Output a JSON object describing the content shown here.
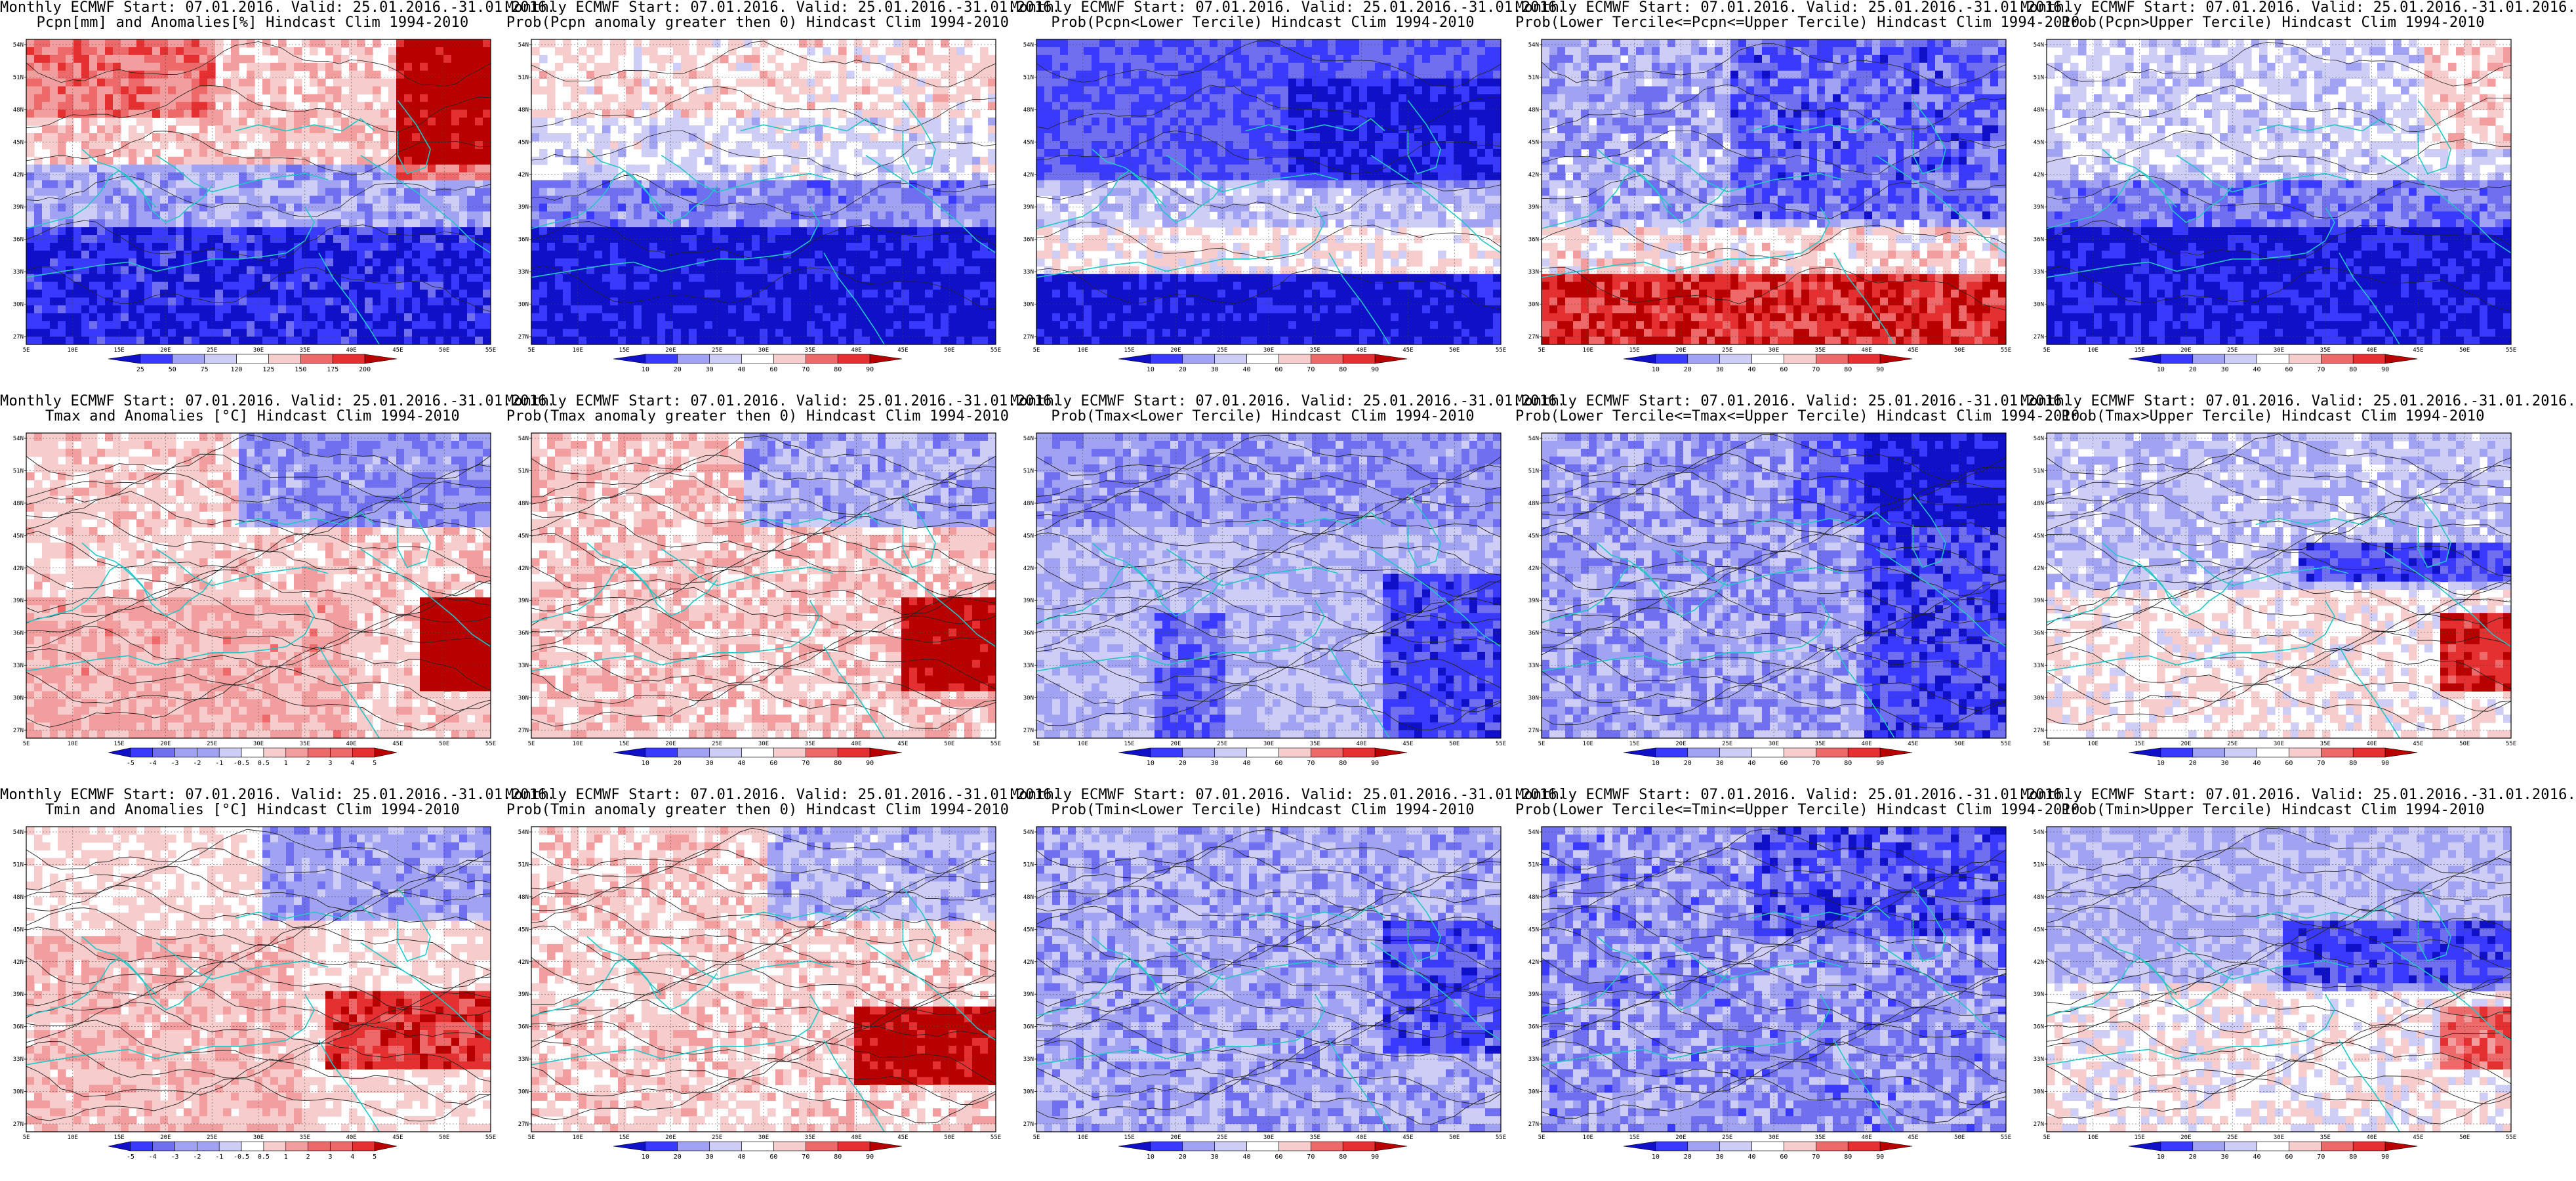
{
  "page": {
    "rows": 3,
    "cols": 5,
    "region": "Mediterranean / Middle East",
    "lat_labels": [
      "54N",
      "51N",
      "48N",
      "45N",
      "42N",
      "39N",
      "36N",
      "33N",
      "30N",
      "27N"
    ],
    "lon_labels": [
      "5E",
      "10E",
      "15E",
      "20E",
      "25E",
      "30E",
      "35E",
      "40E",
      "45E",
      "50E",
      "55E"
    ]
  },
  "colors": {
    "coast": "#22c7c7",
    "contour": "#222222",
    "grid": "#000000",
    "blue_scale": [
      "#1010c8",
      "#3a3aff",
      "#6f6ff0",
      "#a2a2f2",
      "#cdcdf6",
      "#ffffff",
      "#f6cccc",
      "#f29e9e",
      "#ee6a6a",
      "#e43030",
      "#b80000"
    ],
    "red": "#e43030",
    "blue": "#2f2fe0"
  },
  "panels": [
    {
      "id": "pcpn-anom",
      "line1": "Monthly ECMWF Start: 07.01.2016. Valid: 25.01.2016.-31.01.2016.",
      "line2": "Pcpn[mm] and Anomalies[%] Hindcast Clim 1994-2010",
      "cbar": [
        "25",
        "50",
        "75",
        "120",
        "125",
        "150",
        "175",
        "200"
      ],
      "pattern": "pcpn-anom"
    },
    {
      "id": "prob-pcpn-pos",
      "line1": "Monthly ECMWF Start: 07.01.2016. Valid: 25.01.2016.-31.01.2016.",
      "line2": "Prob(Pcpn anomaly greater then 0) Hindcast Clim 1994-2010",
      "cbar": [
        "10",
        "20",
        "30",
        "40",
        "60",
        "70",
        "80",
        "90"
      ],
      "pattern": "pcpn-prob-pos"
    },
    {
      "id": "prob-pcpn-lower",
      "line1": "Monthly ECMWF Start: 07.01.2016. Valid: 25.01.2016.-31.01.2016.",
      "line2": "Prob(Pcpn<Lower Tercile) Hindcast Clim 1994-2010",
      "cbar": [
        "10",
        "20",
        "30",
        "40",
        "60",
        "70",
        "80",
        "90"
      ],
      "pattern": "pcpn-lower"
    },
    {
      "id": "prob-pcpn-middle",
      "line1": "Monthly ECMWF Start: 07.01.2016. Valid: 25.01.2016.-31.01.2016.",
      "line2": "Prob(Lower Tercile<=Pcpn<=Upper Tercile) Hindcast Clim 1994-2010",
      "cbar": [
        "10",
        "20",
        "30",
        "40",
        "60",
        "70",
        "80",
        "90"
      ],
      "pattern": "pcpn-middle"
    },
    {
      "id": "prob-pcpn-upper",
      "line1": "Monthly ECMWF Start: 07.01.2016. Valid: 25.01.2016.-31.01.2016.",
      "line2": "Prob(Pcpn>Upper Tercile) Hindcast Clim 1994-2010",
      "cbar": [
        "10",
        "20",
        "30",
        "40",
        "60",
        "70",
        "80",
        "90"
      ],
      "pattern": "pcpn-upper"
    },
    {
      "id": "tmax-anom",
      "line1": "Monthly ECMWF Start: 07.01.2016. Valid: 25.01.2016.-31.01.2016.",
      "line2": "Tmax and Anomalies [°C] Hindcast Clim 1994-2010",
      "cbar": [
        "-5",
        "-4",
        "-3",
        "-2",
        "-1",
        "-0.5",
        "0.5",
        "1",
        "2",
        "3",
        "4",
        "5"
      ],
      "pattern": "tmax-anom"
    },
    {
      "id": "prob-tmax-pos",
      "line1": "Monthly ECMWF Start: 07.01.2016. Valid: 25.01.2016.-31.01.2016.",
      "line2": "Prob(Tmax anomaly greater then 0) Hindcast Clim 1994-2010",
      "cbar": [
        "10",
        "20",
        "30",
        "40",
        "60",
        "70",
        "80",
        "90"
      ],
      "pattern": "tmax-pos"
    },
    {
      "id": "prob-tmax-lower",
      "line1": "Monthly ECMWF Start: 07.01.2016. Valid: 25.01.2016.-31.01.2016.",
      "line2": "Prob(Tmax<Lower Tercile) Hindcast Clim 1994-2010",
      "cbar": [
        "10",
        "20",
        "30",
        "40",
        "60",
        "70",
        "80",
        "90"
      ],
      "pattern": "tmax-lower"
    },
    {
      "id": "prob-tmax-middle",
      "line1": "Monthly ECMWF Start: 07.01.2016. Valid: 25.01.2016.-31.01.2016.",
      "line2": "Prob(Lower Tercile<=Tmax<=Upper Tercile) Hindcast Clim 1994-2010",
      "cbar": [
        "10",
        "20",
        "30",
        "40",
        "60",
        "70",
        "80",
        "90"
      ],
      "pattern": "tmax-middle"
    },
    {
      "id": "prob-tmax-upper",
      "line1": "Monthly ECMWF Start: 07.01.2016. Valid: 25.01.2016.-31.01.2016.",
      "line2": "Prob(Tmax>Upper Tercile) Hindcast Clim 1994-2010",
      "cbar": [
        "10",
        "20",
        "30",
        "40",
        "60",
        "70",
        "80",
        "90"
      ],
      "pattern": "tmax-upper"
    },
    {
      "id": "tmin-anom",
      "line1": "Monthly ECMWF Start: 07.01.2016. Valid: 25.01.2016.-31.01.2016.",
      "line2": "Tmin and Anomalies [°C] Hindcast Clim 1994-2010",
      "cbar": [
        "-5",
        "-4",
        "-3",
        "-2",
        "-1",
        "-0.5",
        "0.5",
        "1",
        "2",
        "3",
        "4",
        "5"
      ],
      "pattern": "tmin-anom"
    },
    {
      "id": "prob-tmin-pos",
      "line1": "Monthly ECMWF Start: 07.01.2016. Valid: 25.01.2016.-31.01.2016.",
      "line2": "Prob(Tmin anomaly greater then 0) Hindcast Clim 1994-2010",
      "cbar": [
        "10",
        "20",
        "30",
        "40",
        "60",
        "70",
        "80",
        "90"
      ],
      "pattern": "tmin-pos"
    },
    {
      "id": "prob-tmin-lower",
      "line1": "Monthly ECMWF Start: 07.01.2016. Valid: 25.01.2016.-31.01.2016.",
      "line2": "Prob(Tmin<Lower Tercile) Hindcast Clim 1994-2010",
      "cbar": [
        "10",
        "20",
        "30",
        "40",
        "60",
        "70",
        "80",
        "90"
      ],
      "pattern": "tmin-lower"
    },
    {
      "id": "prob-tmin-middle",
      "line1": "Monthly ECMWF Start: 07.01.2016. Valid: 25.01.2016.-31.01.2016.",
      "line2": "Prob(Lower Tercile<=Tmin<=Upper Tercile) Hindcast Clim 1994-2010",
      "cbar": [
        "10",
        "20",
        "30",
        "40",
        "60",
        "70",
        "80",
        "90"
      ],
      "pattern": "tmin-middle"
    },
    {
      "id": "prob-tmin-upper",
      "line1": "Monthly ECMWF Start: 07.01.2016. Valid: 25.01.2016.-31.01.2016.",
      "line2": "Prob(Tmin>Upper Tercile) Hindcast Clim 1994-2010",
      "cbar": [
        "10",
        "20",
        "30",
        "40",
        "60",
        "70",
        "80",
        "90"
      ],
      "pattern": "tmin-upper"
    }
  ]
}
